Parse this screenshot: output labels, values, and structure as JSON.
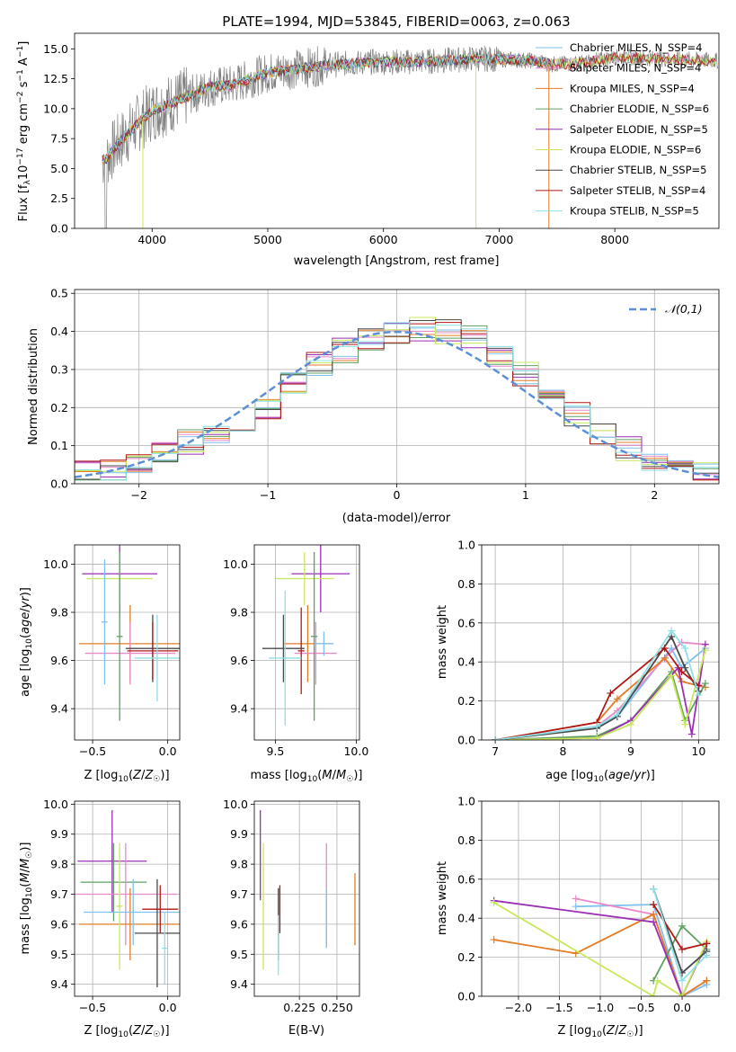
{
  "figure": {
    "title": "PLATE=1994, MJD=53845, FIBERID=0063, z=0.063"
  },
  "legend_colors": [
    "#7ec1ee",
    "#e889c8",
    "#e47b25",
    "#5f9f64",
    "#9b2fb4",
    "#c7e85a",
    "#4a4a4a",
    "#b11818",
    "#8fe0e5"
  ],
  "chart_data": [
    {
      "type": "line",
      "name": "spectrum",
      "title": "PLATE=1994, MJD=53845, FIBERID=0063, z=0.063",
      "xlabel": "wavelength [Angstrom, rest frame]",
      "ylabel": "Flux [f_λ 10^-17 erg cm^-2 s^-1 A^-1]",
      "xlim": [
        3330,
        8900
      ],
      "ylim": [
        0,
        16.3
      ],
      "xticks": [
        4000,
        5000,
        6000,
        7000,
        8000
      ],
      "yticks": [
        0.0,
        2.5,
        5.0,
        7.5,
        10.0,
        12.5,
        15.0
      ],
      "grid": false,
      "legend_position": "right",
      "data_color": "#808080",
      "continuum": {
        "x": [
          3600,
          3700,
          3800,
          3900,
          4000,
          4100,
          4200,
          4300,
          4500,
          4700,
          4900,
          5000,
          5300,
          5600,
          5900,
          6200,
          6500,
          6800,
          7100,
          7300,
          7450,
          7700,
          8000,
          8300,
          8900
        ],
        "y": [
          5.8,
          7.0,
          8.0,
          9.0,
          9.8,
          10.2,
          10.6,
          11.0,
          11.8,
          12.0,
          12.7,
          13.0,
          13.4,
          13.7,
          13.9,
          13.9,
          14.0,
          14.2,
          14.1,
          14.0,
          13.7,
          13.8,
          14.3,
          14.2,
          14.0
        ]
      },
      "series": [
        {
          "name": "Chabrier MILES, N_SSP=4",
          "color": "#7ec1ee"
        },
        {
          "name": "Salpeter MILES, N_SSP=4",
          "color": "#e889c8"
        },
        {
          "name": "Kroupa MILES, N_SSP=4",
          "color": "#e47b25"
        },
        {
          "name": "Chabrier ELODIE, N_SSP=6",
          "color": "#5f9f64"
        },
        {
          "name": "Salpeter ELODIE, N_SSP=5",
          "color": "#9b2fb4"
        },
        {
          "name": "Kroupa ELODIE, N_SSP=6",
          "color": "#c7e85a"
        },
        {
          "name": "Chabrier STELIB, N_SSP=5",
          "color": "#4a4a4a"
        },
        {
          "name": "Salpeter STELIB, N_SSP=4",
          "color": "#b11818"
        },
        {
          "name": "Kroupa STELIB, N_SSP=5",
          "color": "#8fe0e5"
        }
      ]
    },
    {
      "type": "bar",
      "name": "residuals",
      "xlabel": "(data-model)/error",
      "ylabel": "Normed distribution",
      "xlim": [
        -2.5,
        2.5
      ],
      "ylim": [
        0,
        0.51
      ],
      "xticks": [
        -2,
        -1,
        0,
        1,
        2
      ],
      "yticks": [
        0.0,
        0.1,
        0.2,
        0.3,
        0.4,
        0.5
      ],
      "grid": true,
      "legend_position": "top-right",
      "reference": {
        "name": "𝒩(0,1)",
        "color": "#5b8fd6"
      },
      "bin_edges": [
        -2.5,
        -2.3,
        -2.1,
        -1.9,
        -1.7,
        -1.5,
        -1.3,
        -1.1,
        -0.9,
        -0.7,
        -0.5,
        -0.3,
        -0.1,
        0.1,
        0.3,
        0.5,
        0.7,
        0.9,
        1.1,
        1.3,
        1.5,
        1.7,
        1.9,
        2.1,
        2.3,
        2.5
      ],
      "histogram_values": [
        0.03,
        0.03,
        0.05,
        0.08,
        0.11,
        0.14,
        0.17,
        0.2,
        0.26,
        0.31,
        0.35,
        0.38,
        0.4,
        0.41,
        0.4,
        0.38,
        0.34,
        0.29,
        0.24,
        0.18,
        0.13,
        0.09,
        0.06,
        0.04,
        0.03
      ]
    },
    {
      "type": "scatter",
      "name": "age-vs-Z",
      "xlabel": "Z [log10(Z/Z☉)]",
      "ylabel": "age [log10(age/yr)]",
      "xlim": [
        -0.62,
        0.08
      ],
      "ylim": [
        9.27,
        10.08
      ],
      "xticks": [
        -0.5,
        0.0
      ],
      "yticks": [
        9.4,
        9.6,
        9.8,
        10.0
      ],
      "grid": true,
      "points": [
        {
          "x": -0.32,
          "y": 9.96,
          "xerr": 0.25,
          "yerr": 0.18,
          "color": "#9b2fb4"
        },
        {
          "x": -0.32,
          "y": 9.94,
          "xerr": 0.22,
          "yerr": 0.11,
          "color": "#c7e85a"
        },
        {
          "x": -0.25,
          "y": 9.67,
          "xerr": 0.34,
          "yerr": 0.16,
          "color": "#e47b25"
        },
        {
          "x": -0.25,
          "y": 9.63,
          "xerr": 0.3,
          "yerr": 0.13,
          "color": "#e889c8"
        },
        {
          "x": -0.1,
          "y": 9.65,
          "xerr": 0.18,
          "yerr": 0.14,
          "color": "#4a4a4a"
        },
        {
          "x": -0.1,
          "y": 9.64,
          "xerr": 0.17,
          "yerr": 0.12,
          "color": "#b11818"
        },
        {
          "x": -0.07,
          "y": 9.61,
          "xerr": 0.15,
          "yerr": 0.18,
          "color": "#8fe0e5"
        },
        {
          "x": -0.32,
          "y": 9.7,
          "xerr": 0.02,
          "yerr": 0.35,
          "color": "#5f9f64"
        },
        {
          "x": -0.42,
          "y": 9.76,
          "xerr": 0.02,
          "yerr": 0.26,
          "color": "#7ec1ee"
        }
      ]
    },
    {
      "type": "scatter",
      "name": "age-vs-mass",
      "xlabel": "mass [log10(M/M☉)]",
      "ylabel": "",
      "xlim": [
        9.37,
        10.02
      ],
      "ylim": [
        9.27,
        10.08
      ],
      "xticks": [
        9.5,
        10.0
      ],
      "yticks": [
        9.4,
        9.6,
        9.8,
        10.0
      ],
      "grid": true,
      "points": [
        {
          "x": 9.78,
          "y": 9.96,
          "xerr": 0.18,
          "yerr": 0.16,
          "color": "#9b2fb4"
        },
        {
          "x": 9.68,
          "y": 9.94,
          "xerr": 0.18,
          "yerr": 0.11,
          "color": "#c7e85a"
        },
        {
          "x": 9.7,
          "y": 9.67,
          "xerr": 0.15,
          "yerr": 0.16,
          "color": "#e47b25"
        },
        {
          "x": 9.75,
          "y": 9.63,
          "xerr": 0.13,
          "yerr": 0.13,
          "color": "#e889c8"
        },
        {
          "x": 9.55,
          "y": 9.65,
          "xerr": 0.13,
          "yerr": 0.14,
          "color": "#4a4a4a"
        },
        {
          "x": 9.66,
          "y": 9.64,
          "xerr": 0.02,
          "yerr": 0.18,
          "color": "#b11818"
        },
        {
          "x": 9.56,
          "y": 9.61,
          "xerr": 0.1,
          "yerr": 0.28,
          "color": "#8fe0e5"
        },
        {
          "x": 9.74,
          "y": 9.7,
          "xerr": 0.02,
          "yerr": 0.35,
          "color": "#5f9f64"
        },
        {
          "x": 9.8,
          "y": 9.67,
          "xerr": 0.06,
          "yerr": 0.05,
          "color": "#7ec1ee"
        }
      ]
    },
    {
      "type": "line",
      "name": "mass-weight-vs-age",
      "xlabel": "age  [log10(age/yr)]",
      "ylabel": "mass weight",
      "xlim": [
        6.8,
        10.3
      ],
      "ylim": [
        0,
        1.0
      ],
      "xticks": [
        7,
        8,
        9,
        10
      ],
      "yticks": [
        0.0,
        0.2,
        0.4,
        0.6,
        0.8,
        1.0
      ],
      "grid": true,
      "series": [
        {
          "color": "#7ec1ee",
          "x": [
            7.0,
            8.5,
            8.8,
            9.6,
            9.75,
            10.1
          ],
          "y": [
            0.0,
            0.07,
            0.12,
            0.47,
            0.37,
            0.47
          ]
        },
        {
          "color": "#e889c8",
          "x": [
            7.0,
            8.5,
            8.8,
            9.5,
            9.75,
            10.1
          ],
          "y": [
            0.0,
            0.07,
            0.15,
            0.42,
            0.5,
            0.49
          ]
        },
        {
          "color": "#e47b25",
          "x": [
            7.0,
            8.5,
            8.8,
            9.5,
            9.75,
            10.1
          ],
          "y": [
            0.0,
            0.09,
            0.21,
            0.42,
            0.3,
            0.27
          ]
        },
        {
          "color": "#5f9f64",
          "x": [
            7.0,
            8.5,
            9.0,
            9.6,
            9.8,
            10.1
          ],
          "y": [
            0.0,
            0.02,
            0.1,
            0.35,
            0.1,
            0.29
          ]
        },
        {
          "color": "#9b2fb4",
          "x": [
            7.0,
            8.5,
            9.0,
            9.7,
            9.9,
            10.1
          ],
          "y": [
            0.0,
            0.01,
            0.1,
            0.37,
            0.03,
            0.49
          ]
        },
        {
          "color": "#c7e85a",
          "x": [
            7.0,
            8.5,
            9.0,
            9.6,
            9.8,
            10.1
          ],
          "y": [
            0.0,
            0.01,
            0.08,
            0.33,
            0.08,
            0.46
          ]
        },
        {
          "color": "#4a4a4a",
          "x": [
            7.0,
            8.5,
            8.8,
            9.6,
            9.8,
            10.0
          ],
          "y": [
            0.0,
            0.06,
            0.12,
            0.53,
            0.37,
            0.25
          ]
        },
        {
          "color": "#b11818",
          "x": [
            7.0,
            8.5,
            8.7,
            9.5,
            9.75,
            10.0
          ],
          "y": [
            0.0,
            0.09,
            0.24,
            0.47,
            0.35,
            0.28
          ]
        },
        {
          "color": "#8fe0e5",
          "x": [
            7.0,
            8.5,
            8.8,
            9.6,
            9.8,
            10.0
          ],
          "y": [
            0.0,
            0.07,
            0.13,
            0.56,
            0.47,
            0.23
          ]
        }
      ]
    },
    {
      "type": "scatter",
      "name": "mass-vs-Z",
      "xlabel": "Z [log10(Z/Z☉)]",
      "ylabel": "mass [log10(M/M☉)]",
      "xlim": [
        -0.62,
        0.08
      ],
      "ylim": [
        9.36,
        10.01
      ],
      "xticks": [
        -0.5,
        0.0
      ],
      "yticks": [
        9.4,
        9.5,
        9.6,
        9.7,
        9.8,
        9.9,
        10.0
      ],
      "grid": true,
      "points": [
        {
          "x": -0.37,
          "y": 9.81,
          "xerr": 0.23,
          "yerr": 0.17,
          "color": "#9b2fb4"
        },
        {
          "x": -0.36,
          "y": 9.74,
          "xerr": 0.22,
          "yerr": 0.13,
          "color": "#5f9f64"
        },
        {
          "x": -0.28,
          "y": 9.7,
          "xerr": 0.34,
          "yerr": 0.17,
          "color": "#e889c8"
        },
        {
          "x": -0.25,
          "y": 9.6,
          "xerr": 0.34,
          "yerr": 0.12,
          "color": "#e47b25"
        },
        {
          "x": -0.23,
          "y": 9.64,
          "xerr": 0.33,
          "yerr": 0.11,
          "color": "#7ec1ee"
        },
        {
          "x": -0.07,
          "y": 9.57,
          "xerr": 0.15,
          "yerr": 0.18,
          "color": "#4a4a4a"
        },
        {
          "x": -0.05,
          "y": 9.65,
          "xerr": 0.12,
          "yerr": 0.08,
          "color": "#b11818"
        },
        {
          "x": -0.32,
          "y": 9.66,
          "xerr": 0.02,
          "yerr": 0.21,
          "color": "#c7e85a"
        },
        {
          "x": -0.02,
          "y": 9.52,
          "xerr": 0.02,
          "yerr": 0.12,
          "color": "#8fe0e5"
        }
      ]
    },
    {
      "type": "scatter",
      "name": "mass-vs-EBV",
      "xlabel": "E(B-V)",
      "ylabel": "",
      "xlim": [
        0.195,
        0.265
      ],
      "ylim": [
        9.36,
        10.01
      ],
      "xticks": [
        0.225,
        0.25
      ],
      "xtick_labels": [
        "0.225",
        "0.250"
      ],
      "yticks": [
        9.4,
        9.5,
        9.6,
        9.7,
        9.8,
        9.9,
        10.0
      ],
      "grid": true,
      "points": [
        {
          "x": 0.199,
          "y": 9.83,
          "xerr": 0.0,
          "yerr": 0.15,
          "color": "#9b2fb4"
        },
        {
          "x": 0.201,
          "y": 9.66,
          "xerr": 0.0,
          "yerr": 0.21,
          "color": "#c7e85a"
        },
        {
          "x": 0.211,
          "y": 9.6,
          "xerr": 0.0,
          "yerr": 0.12,
          "color": "#4a4a4a"
        },
        {
          "x": 0.212,
          "y": 9.65,
          "xerr": 0.0,
          "yerr": 0.08,
          "color": "#b11818"
        },
        {
          "x": 0.211,
          "y": 9.53,
          "xerr": 0.0,
          "yerr": 0.1,
          "color": "#8fe0e5"
        },
        {
          "x": 0.243,
          "y": 9.7,
          "xerr": 0.0,
          "yerr": 0.17,
          "color": "#e889c8"
        },
        {
          "x": 0.243,
          "y": 9.62,
          "xerr": 0.0,
          "yerr": 0.1,
          "color": "#7ec1ee"
        },
        {
          "x": 0.262,
          "y": 9.65,
          "xerr": 0.0,
          "yerr": 0.12,
          "color": "#e47b25"
        }
      ]
    },
    {
      "type": "line",
      "name": "mass-weight-vs-Z",
      "xlabel": "Z [log10(Z/Z☉)]",
      "ylabel": "mass weight",
      "xlim": [
        -2.45,
        0.45
      ],
      "ylim": [
        0,
        1.0
      ],
      "xticks": [
        -2.0,
        -1.5,
        -1.0,
        -0.5,
        0.0
      ],
      "yticks": [
        0.0,
        0.2,
        0.4,
        0.6,
        0.8,
        1.0
      ],
      "grid": true,
      "series": [
        {
          "color": "#7ec1ee",
          "x": [
            -1.3,
            -0.35,
            0.0,
            0.3
          ],
          "y": [
            0.46,
            0.47,
            0.0,
            0.06
          ]
        },
        {
          "color": "#e889c8",
          "x": [
            -1.3,
            -0.35,
            0.0,
            0.3
          ],
          "y": [
            0.5,
            0.42,
            0.0,
            0.08
          ]
        },
        {
          "color": "#e47b25",
          "x": [
            -2.3,
            -1.3,
            -0.35,
            0.0,
            0.3
          ],
          "y": [
            0.29,
            0.22,
            0.42,
            0.0,
            0.08
          ]
        },
        {
          "color": "#5f9f64",
          "x": [
            -0.35,
            0.0,
            0.3
          ],
          "y": [
            0.08,
            0.36,
            0.24
          ]
        },
        {
          "color": "#9b2fb4",
          "x": [
            -2.3,
            -0.35,
            0.0,
            0.3
          ],
          "y": [
            0.49,
            0.38,
            0.0,
            0.27
          ]
        },
        {
          "color": "#c7e85a",
          "x": [
            -2.3,
            -0.35,
            -0.3,
            0.0,
            0.3
          ],
          "y": [
            0.48,
            0.0,
            0.08,
            0.0,
            0.28
          ]
        },
        {
          "color": "#4a4a4a",
          "x": [
            -0.35,
            0.0,
            0.3
          ],
          "y": [
            0.55,
            0.12,
            0.23
          ]
        },
        {
          "color": "#b11818",
          "x": [
            -0.35,
            0.0,
            0.3
          ],
          "y": [
            0.47,
            0.24,
            0.27
          ]
        },
        {
          "color": "#8fe0e5",
          "x": [
            -0.35,
            0.0,
            0.3
          ],
          "y": [
            0.55,
            0.08,
            0.21
          ]
        }
      ]
    }
  ]
}
